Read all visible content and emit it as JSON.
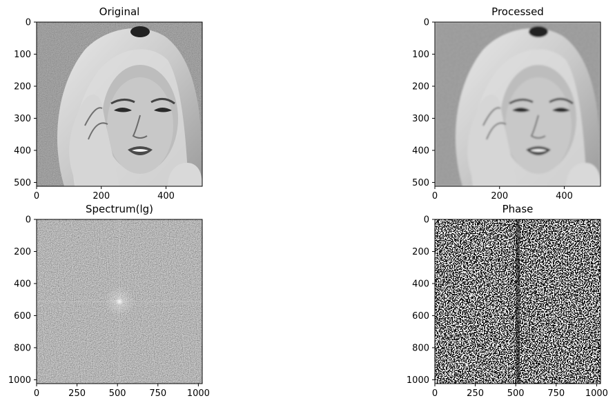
{
  "chart_data": [
    {
      "type": "heatmap",
      "title": "Original",
      "colormap": "gray",
      "xlim": [
        0,
        512
      ],
      "ylim": [
        512,
        0
      ],
      "xticks": [
        0,
        200,
        400
      ],
      "yticks": [
        0,
        100,
        200,
        300,
        400,
        500
      ],
      "xtick_labels": [
        "0",
        "200",
        "400"
      ],
      "ytick_labels": [
        "0",
        "100",
        "200",
        "300",
        "400",
        "500"
      ],
      "content": "grayscale portrait photograph"
    },
    {
      "type": "heatmap",
      "title": "Processed",
      "colormap": "gray",
      "xlim": [
        0,
        512
      ],
      "ylim": [
        512,
        0
      ],
      "xticks": [
        0,
        200,
        400
      ],
      "yticks": [
        0,
        100,
        200,
        300,
        400,
        500
      ],
      "xtick_labels": [
        "0",
        "200",
        "400"
      ],
      "ytick_labels": [
        "0",
        "100",
        "200",
        "300",
        "400",
        "500"
      ],
      "content": "smoothed grayscale portrait photograph"
    },
    {
      "type": "heatmap",
      "title": "Spectrum(lg)",
      "colormap": "gray",
      "xlim": [
        0,
        1024
      ],
      "ylim": [
        1024,
        0
      ],
      "xticks": [
        0,
        250,
        500,
        750,
        1000
      ],
      "yticks": [
        0,
        200,
        400,
        600,
        800,
        1000
      ],
      "xtick_labels": [
        "0",
        "250",
        "500",
        "750",
        "1000"
      ],
      "ytick_labels": [
        "0",
        "200",
        "400",
        "600",
        "800",
        "1000"
      ],
      "content": "log magnitude spectrum, centered"
    },
    {
      "type": "heatmap",
      "title": "Phase",
      "colormap": "gray",
      "xlim": [
        0,
        1024
      ],
      "ylim": [
        1024,
        0
      ],
      "xticks": [
        0,
        250,
        500,
        750,
        1000
      ],
      "yticks": [
        0,
        200,
        400,
        600,
        800,
        1000
      ],
      "xtick_labels": [
        "0",
        "250",
        "500",
        "750",
        "1000"
      ],
      "ytick_labels": [
        "0",
        "200",
        "400",
        "600",
        "800",
        "1000"
      ],
      "content": "phase spectrum, binary noise"
    }
  ]
}
